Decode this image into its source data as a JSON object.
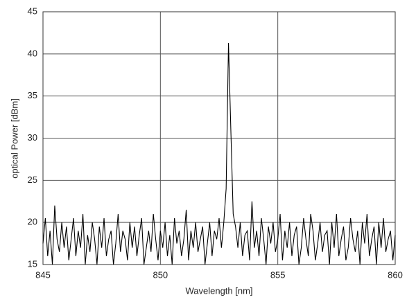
{
  "chart_data": {
    "type": "line",
    "xlabel": "Wavelength [nm]",
    "ylabel": "optical Power [dBm]",
    "x": [
      845.0,
      845.1,
      845.2,
      845.3,
      845.4,
      845.5,
      845.6,
      845.7,
      845.8,
      845.9,
      846.0,
      846.1,
      846.2,
      846.3,
      846.4,
      846.5,
      846.6,
      846.7,
      846.8,
      846.9,
      847.0,
      847.1,
      847.2,
      847.3,
      847.4,
      847.5,
      847.6,
      847.7,
      847.8,
      847.9,
      848.0,
      848.1,
      848.2,
      848.3,
      848.4,
      848.5,
      848.6,
      848.7,
      848.8,
      848.9,
      849.0,
      849.1,
      849.2,
      849.3,
      849.4,
      849.5,
      849.6,
      849.7,
      849.8,
      849.9,
      850.0,
      850.1,
      850.2,
      850.3,
      850.4,
      850.5,
      850.6,
      850.7,
      850.8,
      850.9,
      851.0,
      851.1,
      851.2,
      851.3,
      851.4,
      851.5,
      851.6,
      851.7,
      851.8,
      851.9,
      852.0,
      852.1,
      852.2,
      852.3,
      852.4,
      852.5,
      852.6,
      852.7,
      852.8,
      852.9,
      853.0,
      853.1,
      853.2,
      853.3,
      853.4,
      853.5,
      853.6,
      853.7,
      853.8,
      853.9,
      854.0,
      854.1,
      854.2,
      854.3,
      854.4,
      854.5,
      854.6,
      854.7,
      854.8,
      854.9,
      855.0,
      855.1,
      855.2,
      855.3,
      855.4,
      855.5,
      855.6,
      855.7,
      855.8,
      855.9,
      856.0,
      856.1,
      856.2,
      856.3,
      856.4,
      856.5,
      856.6,
      856.7,
      856.8,
      856.9,
      857.0,
      857.1,
      857.2,
      857.3,
      857.4,
      857.5,
      857.6,
      857.7,
      857.8,
      857.9,
      858.0,
      858.1,
      858.2,
      858.3,
      858.4,
      858.5,
      858.6,
      858.7,
      858.8,
      858.9,
      859.0,
      859.1,
      859.2,
      859.3,
      859.4,
      859.5,
      859.6,
      859.7,
      859.8,
      859.9,
      860.0
    ],
    "series": [
      {
        "color": "#000000",
        "values": [
          17.5,
          20.5,
          16,
          19,
          15,
          22,
          18,
          16.5,
          20,
          17,
          19.5,
          15.5,
          18,
          20.5,
          16,
          19,
          17,
          21,
          15,
          18.5,
          16.5,
          20,
          18,
          15,
          19.5,
          17,
          20.5,
          16,
          18,
          19,
          15,
          17.5,
          21,
          16.5,
          19,
          18,
          15.5,
          20,
          17,
          19.5,
          16,
          18.5,
          20.5,
          15,
          17,
          19,
          16.5,
          21,
          18,
          15.5,
          19,
          17,
          20,
          16,
          18.5,
          15,
          20.5,
          17.5,
          19,
          16,
          18,
          21.5,
          15.5,
          19,
          17,
          20,
          16.5,
          18,
          19.5,
          15,
          17.5,
          20,
          16,
          19,
          18,
          20.5,
          17,
          20,
          24,
          41.3,
          31,
          21,
          19.5,
          17,
          20,
          16,
          18.5,
          19,
          15.5,
          22.5,
          17,
          19,
          16,
          20.5,
          18,
          15,
          19.5,
          17.5,
          20,
          16.5,
          18,
          21,
          15.5,
          19,
          17,
          20,
          16,
          18.5,
          19.5,
          15,
          17,
          20.5,
          18,
          16,
          21,
          19,
          15.5,
          17.5,
          20,
          16.5,
          18.5,
          19,
          15,
          20,
          17,
          21,
          16,
          18,
          19.5,
          15.5,
          17,
          20.5,
          18,
          16.5,
          19,
          15,
          20,
          17.5,
          21,
          16,
          18,
          19.5,
          15,
          20,
          17,
          20.5,
          16.5,
          18,
          19,
          15.5,
          18.5
        ]
      }
    ],
    "xlim": [
      845,
      860
    ],
    "xticks": [
      845,
      850,
      855,
      860
    ],
    "ylim": [
      15,
      45
    ],
    "yticks": [
      15,
      20,
      25,
      30,
      35,
      40,
      45
    ],
    "grid": true
  }
}
